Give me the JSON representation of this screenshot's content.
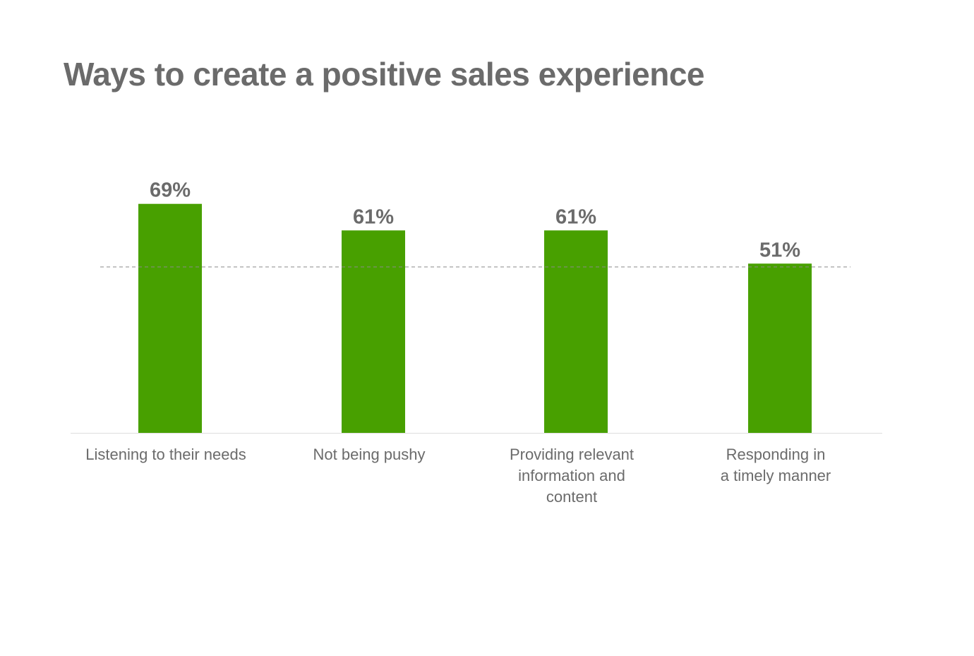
{
  "chart_data": {
    "type": "bar",
    "title": "Ways to create a positive sales experience",
    "xlabel": "",
    "ylabel": "",
    "categories": [
      [
        "Listening to their needs"
      ],
      [
        "Not being pushy"
      ],
      [
        "Providing relevant",
        "information and",
        "content"
      ],
      [
        "Responding in",
        "a timely manner"
      ]
    ],
    "values": [
      69,
      61,
      61,
      51
    ],
    "value_labels": [
      "69%",
      "61%",
      "61%",
      "51%"
    ],
    "reference_line": 50,
    "ylim": [
      0,
      100
    ],
    "grid": false,
    "legend": "none",
    "colors": {
      "bar": "#48a000",
      "text": "#6b6b6b",
      "axis": "#dddddd",
      "reference": "#8a8a8a"
    }
  }
}
